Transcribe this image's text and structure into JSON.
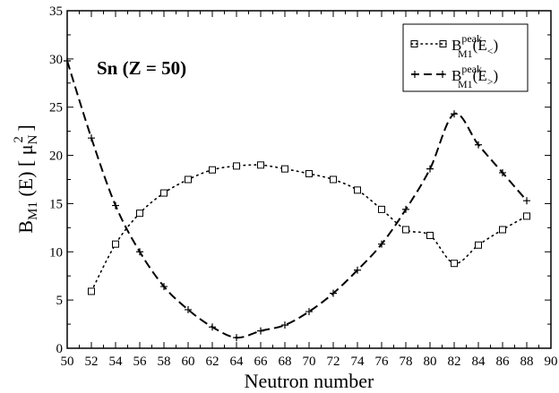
{
  "chart_data": {
    "type": "line",
    "xlabel": "Neutron number",
    "ylabel": {
      "main": "B",
      "sub": "M1",
      "rest": " (E)  [ μ",
      "sub2": "N",
      "sup2": "2",
      "close": " ]"
    },
    "xlim": [
      50,
      90
    ],
    "ylim": [
      0,
      35
    ],
    "x_ticks": [
      "50",
      "52",
      "54",
      "56",
      "58",
      "60",
      "62",
      "64",
      "66",
      "68",
      "70",
      "72",
      "74",
      "76",
      "78",
      "80",
      "82",
      "84",
      "86",
      "88",
      "90"
    ],
    "y_ticks": [
      "0",
      "5",
      "10",
      "15",
      "20",
      "25",
      "30",
      "35"
    ],
    "annotation": "Sn (Z = 50)",
    "legend_position": "top-right",
    "grid": false,
    "series": [
      {
        "legend": {
          "main": "B",
          "sup": "peak",
          "sub": "M1",
          "arg": "(E",
          "argsub": "<",
          "close": ")"
        },
        "style": "dotted",
        "marker": "square",
        "x": [
          52,
          54,
          56,
          58,
          60,
          62,
          64,
          66,
          68,
          70,
          72,
          74,
          76,
          78,
          80,
          82,
          84,
          86,
          88
        ],
        "y": [
          5.9,
          10.8,
          14.0,
          16.1,
          17.5,
          18.5,
          18.9,
          19.0,
          18.6,
          18.1,
          17.5,
          16.4,
          14.4,
          12.3,
          11.7,
          8.8,
          10.7,
          12.3,
          13.7
        ]
      },
      {
        "legend": {
          "main": "B",
          "sup": "peak",
          "sub": "M1",
          "arg": "(E",
          "argsub": ">",
          "close": ")"
        },
        "style": "dashed",
        "marker": "plus",
        "x": [
          50,
          52,
          54,
          56,
          58,
          60,
          62,
          64,
          66,
          68,
          70,
          72,
          74,
          76,
          78,
          80,
          82,
          84,
          86,
          88
        ],
        "y": [
          29.8,
          21.8,
          14.8,
          10.0,
          6.4,
          4.0,
          2.2,
          1.1,
          1.8,
          2.4,
          3.8,
          5.7,
          8.1,
          10.8,
          14.4,
          18.6,
          24.3,
          21.1,
          18.2,
          15.3
        ]
      }
    ]
  }
}
